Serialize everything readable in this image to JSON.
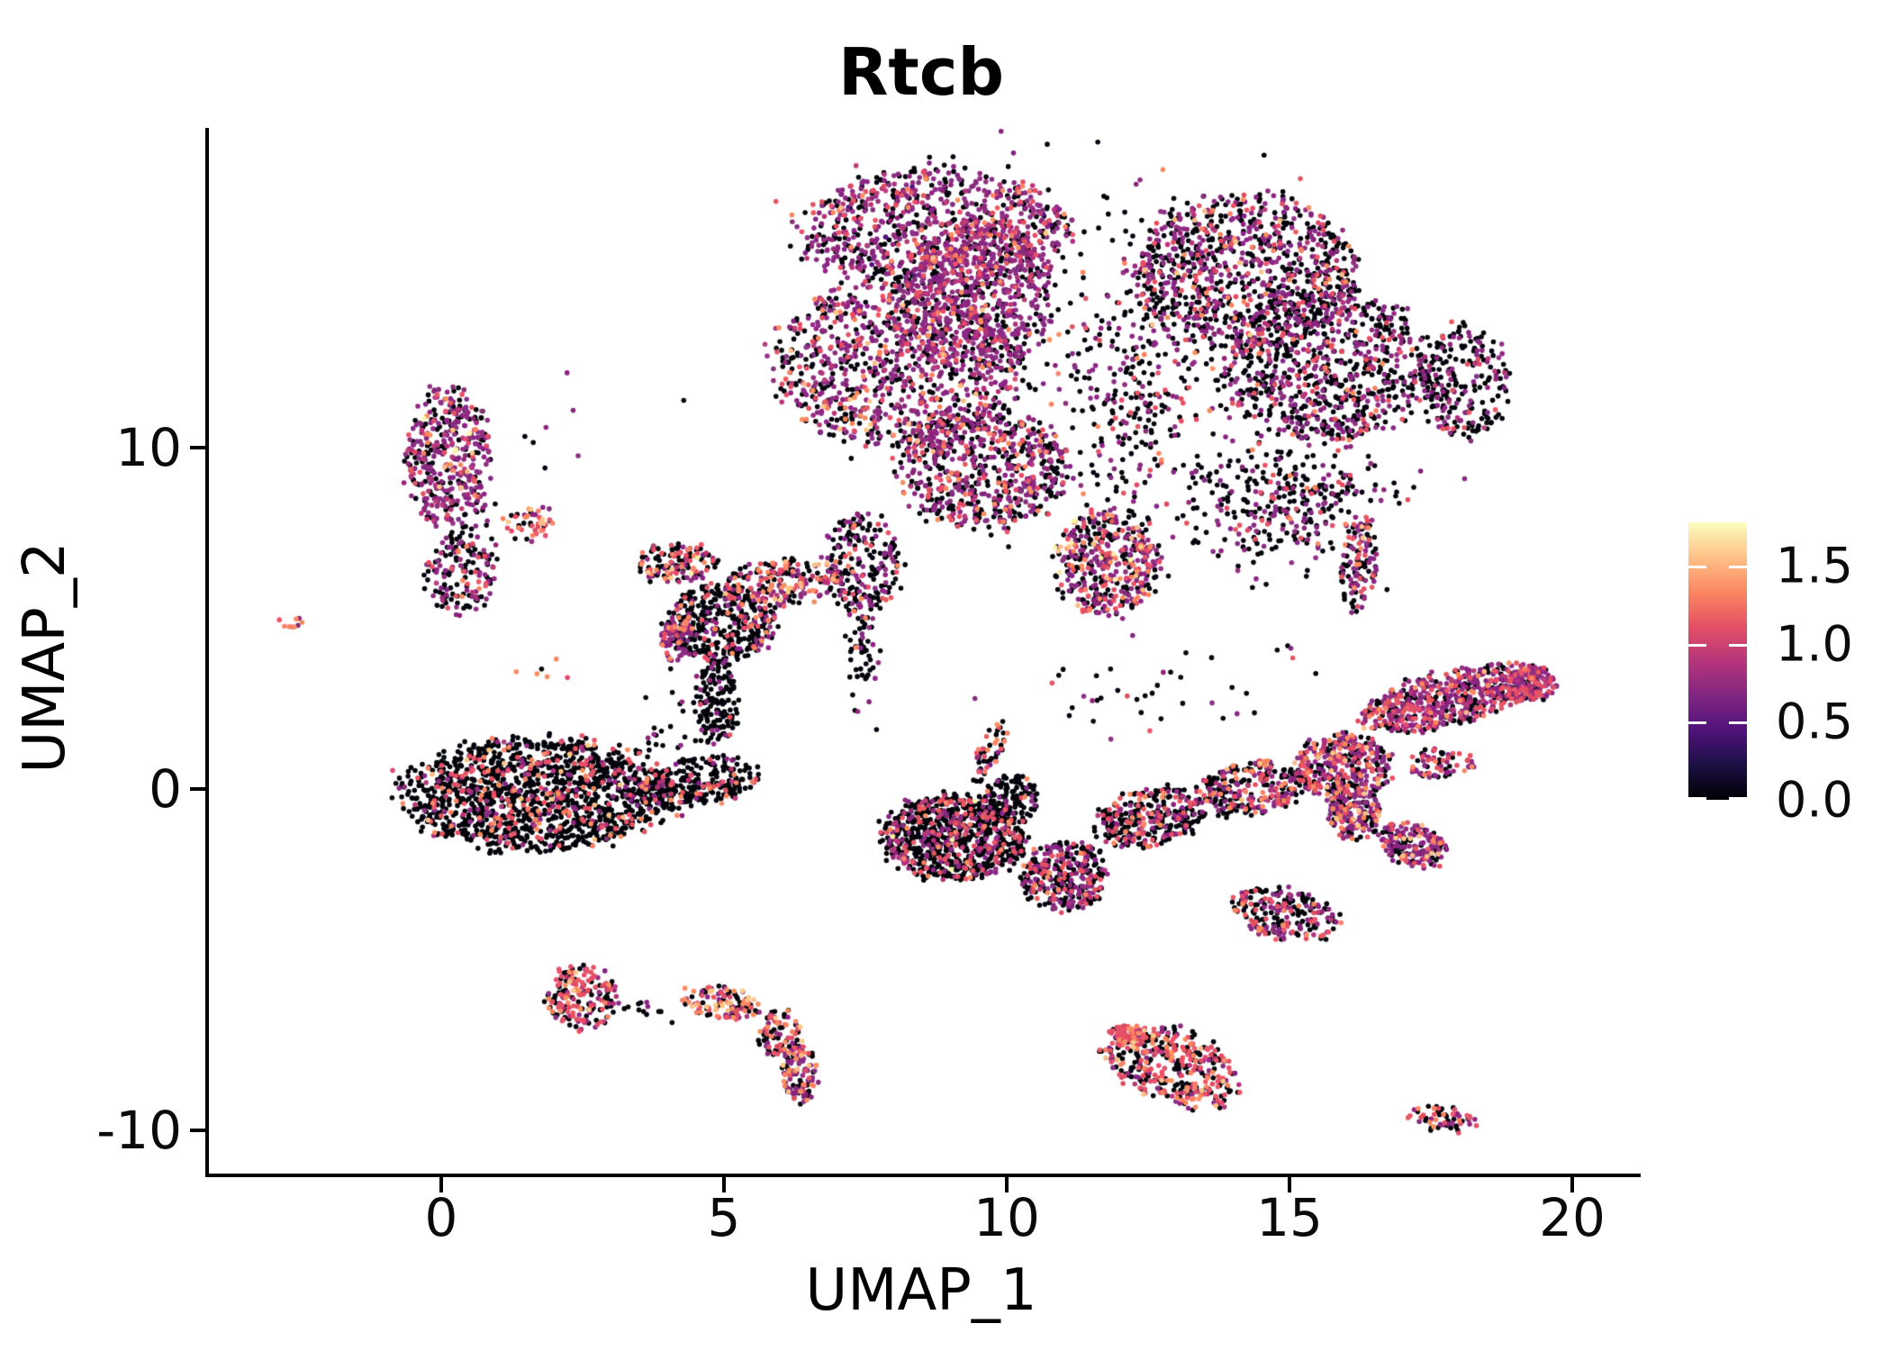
{
  "title": "Rtcb",
  "axes": {
    "x_label": "UMAP_1",
    "y_label": "UMAP_2",
    "x_ticks": [
      0,
      5,
      10,
      15,
      20
    ],
    "y_ticks": [
      10,
      0,
      -10
    ],
    "x_range": [
      -4.1,
      21.2
    ],
    "y_range": [
      -11.3,
      19.4
    ]
  },
  "colorbar": {
    "tick_labels": [
      "1.5",
      "1.0",
      "0.5",
      "0.0"
    ],
    "tick_values": [
      1.5,
      1.0,
      0.5,
      0.0
    ],
    "range": [
      0,
      1.777
    ],
    "position": "right",
    "magma_stops": [
      "#000004",
      "#1c1044",
      "#4f127b",
      "#812581",
      "#b5367a",
      "#e55064",
      "#fb8761",
      "#fec287",
      "#fcfdbf"
    ]
  },
  "point_colors": {
    "black": "#03030a",
    "dpurple": "#51127c",
    "purple": "#8c2981",
    "magenta": "#b63679",
    "pink": "#e65164",
    "orange": "#fb8861",
    "peach": "#fec287",
    "yellow": "#fcf1a9"
  },
  "chart_data": {
    "type": "scatter",
    "title": "Rtcb",
    "xlabel": "UMAP_1",
    "ylabel": "UMAP_2",
    "xlim": [
      -4.1,
      21.2
    ],
    "ylim": [
      -11.3,
      19.4
    ],
    "grid": false,
    "legend": "colorbar right, expression 0.0 to ~1.78, magma colormap",
    "point_radius_px": 2.8,
    "clusters": [
      {
        "name": "top-left-band",
        "cx": 8.76,
        "cy": 16.4,
        "rx": 2.39,
        "ry": 1.72,
        "rot": 0,
        "n": 850,
        "palette": {
          "purple": 0.46,
          "black": 0.3,
          "magenta": 0.09,
          "pink": 0.08,
          "orange": 0.04,
          "dpurple": 0.02,
          "peach": 0.01
        }
      },
      {
        "name": "top-left-mass",
        "cx": 8.04,
        "cy": 12.43,
        "rx": 2.15,
        "ry": 2.51,
        "rot": 0,
        "n": 1000,
        "palette": {
          "purple": 0.42,
          "black": 0.36,
          "magenta": 0.08,
          "pink": 0.08,
          "orange": 0.04,
          "peach": 0.02
        }
      },
      {
        "name": "top-left-core",
        "cx": 9.47,
        "cy": 14.4,
        "rx": 1.35,
        "ry": 2.24,
        "rot": 0,
        "n": 620,
        "palette": {
          "purple": 0.55,
          "black": 0.25,
          "magenta": 0.1,
          "pink": 0.07,
          "orange": 0.03
        }
      },
      {
        "name": "top-lower-ext",
        "cx": 9.55,
        "cy": 9.39,
        "rx": 1.51,
        "ry": 1.72,
        "rot": 0,
        "n": 640,
        "palette": {
          "purple": 0.4,
          "black": 0.42,
          "pink": 0.09,
          "magenta": 0.05,
          "orange": 0.04
        }
      },
      {
        "name": "top-left-tail",
        "cx": 7.45,
        "cy": 6.62,
        "rx": 0.72,
        "ry": 1.45,
        "rot": 0,
        "n": 220,
        "palette": {
          "black": 0.6,
          "purple": 0.3,
          "pink": 0.06,
          "orange": 0.04
        }
      },
      {
        "name": "top-left-tail-thin",
        "cx": 7.45,
        "cy": 3.98,
        "rx": 0.25,
        "ry": 1.45,
        "rot": 0,
        "n": 55,
        "dist": "gauss",
        "palette": {
          "black": 0.82,
          "purple": 0.12,
          "orange": 0.06
        }
      },
      {
        "name": "top-mid-tail",
        "cx": 11.75,
        "cy": 6.62,
        "rx": 0.92,
        "ry": 1.53,
        "rot": 0,
        "n": 430,
        "palette": {
          "purple": 0.38,
          "black": 0.36,
          "pink": 0.13,
          "orange": 0.08,
          "peach": 0.03,
          "yellow": 0.02
        }
      },
      {
        "name": "top-right-upper",
        "cx": 14.17,
        "cy": 15.2,
        "rx": 1.99,
        "ry": 2.24,
        "rot": 0,
        "n": 860,
        "palette": {
          "black": 0.5,
          "purple": 0.32,
          "pink": 0.08,
          "magenta": 0.06,
          "orange": 0.03,
          "peach": 0.01
        }
      },
      {
        "name": "top-right-lower",
        "cx": 15.68,
        "cy": 12.43,
        "rx": 1.83,
        "ry": 2.24,
        "rot": 0,
        "n": 820,
        "palette": {
          "black": 0.56,
          "purple": 0.3,
          "pink": 0.08,
          "magenta": 0.04,
          "orange": 0.02
        }
      },
      {
        "name": "top-right-hook",
        "cx": 18.07,
        "cy": 11.9,
        "rx": 0.76,
        "ry": 1.72,
        "rot": 0,
        "n": 230,
        "palette": {
          "black": 0.6,
          "purple": 0.27,
          "pink": 0.08,
          "magenta": 0.05
        }
      },
      {
        "name": "top-gap-sparse",
        "cx": 12.42,
        "cy": 11.9,
        "rx": 1.19,
        "ry": 3.43,
        "rot": 0,
        "n": 300,
        "dist": "gauss",
        "palette": {
          "black": 0.58,
          "purple": 0.3,
          "pink": 0.08,
          "orange": 0.04
        }
      },
      {
        "name": "top-lowerright-sparse",
        "cx": 14.97,
        "cy": 8.47,
        "rx": 1.51,
        "ry": 1.45,
        "rot": 0,
        "n": 330,
        "dist": "gauss",
        "palette": {
          "black": 0.6,
          "purple": 0.3,
          "pink": 0.07,
          "orange": 0.03
        }
      },
      {
        "name": "top-halo",
        "cx": 11.94,
        "cy": 13.1,
        "rx": 4.14,
        "ry": 4.75,
        "rot": 0,
        "n": 230,
        "dist": "gauss",
        "palette": {
          "black": 0.66,
          "purple": 0.27,
          "pink": 0.05,
          "orange": 0.02
        }
      },
      {
        "name": "left-purple-main",
        "cx": 0.11,
        "cy": 9.79,
        "rx": 0.76,
        "ry": 1.98,
        "rot": 0,
        "n": 400,
        "palette": {
          "purple": 0.5,
          "black": 0.3,
          "magenta": 0.09,
          "pink": 0.06,
          "orange": 0.03,
          "peach": 0.01,
          "yellow": 0.01
        }
      },
      {
        "name": "left-purple-sub",
        "cx": 0.32,
        "cy": 6.23,
        "rx": 0.64,
        "ry": 1.11,
        "rot": 0,
        "n": 150,
        "palette": {
          "black": 0.54,
          "purple": 0.34,
          "pink": 0.06,
          "orange": 0.03,
          "magenta": 0.03
        }
      },
      {
        "name": "left-purple-trail",
        "cx": 0.48,
        "cy": 7.81,
        "rx": 0.48,
        "ry": 1.06,
        "rot": 0,
        "n": 40,
        "dist": "gauss",
        "palette": {
          "black": 0.6,
          "purple": 0.4
        }
      },
      {
        "name": "far-left-dot",
        "cx": -2.67,
        "cy": 4.91,
        "rx": 0.21,
        "ry": 0.26,
        "rot": 0,
        "n": 9,
        "palette": {
          "pink": 0.4,
          "orange": 0.25,
          "black": 0.25,
          "purple": 0.1
        }
      },
      {
        "name": "small-orange",
        "cx": 1.51,
        "cy": 7.68,
        "rx": 0.48,
        "ry": 0.55,
        "rot": 0,
        "n": 44,
        "palette": {
          "pink": 0.34,
          "orange": 0.24,
          "black": 0.26,
          "purple": 0.1,
          "peach": 0.06
        }
      },
      {
        "name": "tiny-trio",
        "cx": 1.83,
        "cy": 3.67,
        "rx": 0.35,
        "ry": 0.42,
        "rot": 0,
        "n": 6,
        "dist": "gauss",
        "palette": {
          "orange": 0.5,
          "pink": 0.2,
          "black": 0.2,
          "purple": 0.1
        }
      },
      {
        "name": "midleft-arc-left",
        "cx": 4.17,
        "cy": 6.62,
        "rx": 0.72,
        "ry": 0.58,
        "rot": 0,
        "n": 130,
        "palette": {
          "black": 0.38,
          "pink": 0.18,
          "purple": 0.16,
          "magenta": 0.1,
          "orange": 0.12,
          "peach": 0.04,
          "yellow": 0.02
        }
      },
      {
        "name": "midleft-arc-right",
        "cx": 6.02,
        "cy": 6.02,
        "rx": 1.08,
        "ry": 0.69,
        "rot": -8,
        "n": 215,
        "palette": {
          "black": 0.4,
          "purple": 0.22,
          "pink": 0.15,
          "magenta": 0.08,
          "orange": 0.11,
          "peach": 0.04
        }
      },
      {
        "name": "midleft-body",
        "cx": 4.94,
        "cy": 4.85,
        "rx": 0.99,
        "ry": 1.11,
        "rot": 0,
        "n": 390,
        "palette": {
          "black": 0.79,
          "purple": 0.1,
          "pink": 0.06,
          "orange": 0.03,
          "magenta": 0.02
        }
      },
      {
        "name": "midleft-purple-blob",
        "cx": 4.17,
        "cy": 4.38,
        "rx": 0.3,
        "ry": 0.61,
        "rot": 0,
        "n": 85,
        "palette": {
          "purple": 0.6,
          "orange": 0.12,
          "black": 0.2,
          "pink": 0.08
        }
      },
      {
        "name": "midleft-tail",
        "cx": 4.87,
        "cy": 2.59,
        "rx": 0.41,
        "ry": 1.21,
        "rot": 0,
        "n": 150,
        "palette": {
          "black": 0.87,
          "purple": 0.1,
          "pink": 0.03
        }
      },
      {
        "name": "midleft-strays",
        "cx": 4.3,
        "cy": 2.0,
        "rx": 0.96,
        "ry": 1.06,
        "rot": 0,
        "n": 18,
        "dist": "gauss",
        "palette": {
          "black": 0.85,
          "purple": 0.15
        }
      },
      {
        "name": "bottomleft-main",
        "cx": 1.72,
        "cy": -0.16,
        "rx": 2.42,
        "ry": 1.64,
        "rot": 0,
        "n": 1450,
        "palette": {
          "black": 0.78,
          "pink": 0.08,
          "purple": 0.06,
          "magenta": 0.03,
          "orange": 0.04,
          "peach": 0.01
        }
      },
      {
        "name": "bottomleft-tail",
        "cx": 4.54,
        "cy": 0.21,
        "rx": 1.15,
        "ry": 0.69,
        "rot": -7,
        "n": 260,
        "palette": {
          "black": 0.8,
          "pink": 0.09,
          "purple": 0.05,
          "orange": 0.04,
          "magenta": 0.02
        }
      },
      {
        "name": "bottomleft-strays",
        "cx": 4.3,
        "cy": 1.61,
        "rx": 0.64,
        "ry": 0.53,
        "rot": 0,
        "n": 14,
        "dist": "gauss",
        "palette": {
          "black": 1.0
        }
      },
      {
        "name": "central-horn",
        "cx": 9.71,
        "cy": 1.08,
        "rx": 0.22,
        "ry": 0.95,
        "rot": 25,
        "n": 55,
        "palette": {
          "black": 0.55,
          "orange": 0.18,
          "pink": 0.12,
          "purple": 0.15
        }
      },
      {
        "name": "central-neck",
        "cx": 10.06,
        "cy": -0.32,
        "rx": 0.51,
        "ry": 0.79,
        "rot": 0,
        "n": 120,
        "palette": {
          "black": 0.84,
          "purple": 0.08,
          "pink": 0.04,
          "orange": 0.04
        }
      },
      {
        "name": "central-main",
        "cx": 9.08,
        "cy": -1.42,
        "rx": 1.27,
        "ry": 1.24,
        "rot": 0,
        "n": 830,
        "palette": {
          "black": 0.7,
          "purple": 0.12,
          "pink": 0.09,
          "magenta": 0.06,
          "orange": 0.02,
          "yellow": 0.01
        }
      },
      {
        "name": "central-v",
        "cx": 11.02,
        "cy": -2.53,
        "rx": 0.76,
        "ry": 1.0,
        "rot": 0,
        "n": 330,
        "palette": {
          "black": 0.57,
          "purple": 0.26,
          "pink": 0.1,
          "magenta": 0.04,
          "orange": 0.03
        }
      },
      {
        "name": "central-wing1",
        "cx": 12.55,
        "cy": -0.84,
        "rx": 0.99,
        "ry": 0.84,
        "rot": -12,
        "n": 300,
        "palette": {
          "black": 0.57,
          "purple": 0.18,
          "pink": 0.13,
          "magenta": 0.06,
          "orange": 0.06
        }
      },
      {
        "name": "central-wing2",
        "cx": 14.3,
        "cy": 0.0,
        "rx": 0.99,
        "ry": 0.79,
        "rot": -10,
        "n": 280,
        "palette": {
          "black": 0.5,
          "purple": 0.2,
          "pink": 0.15,
          "magenta": 0.06,
          "orange": 0.07,
          "peach": 0.02
        }
      },
      {
        "name": "right-body",
        "cx": 15.96,
        "cy": 0.63,
        "rx": 0.83,
        "ry": 0.98,
        "rot": 0,
        "n": 380,
        "palette": {
          "black": 0.37,
          "purple": 0.28,
          "pink": 0.18,
          "magenta": 0.08,
          "orange": 0.07,
          "peach": 0.02
        }
      },
      {
        "name": "right-diag-arm",
        "cx": 17.87,
        "cy": 2.67,
        "rx": 1.67,
        "ry": 0.79,
        "rot": -14,
        "n": 580,
        "palette": {
          "purple": 0.4,
          "black": 0.28,
          "pink": 0.17,
          "magenta": 0.1,
          "orange": 0.04,
          "peach": 0.01
        }
      },
      {
        "name": "right-tip",
        "cx": 19.27,
        "cy": 3.06,
        "rx": 0.45,
        "ry": 0.53,
        "rot": 0,
        "n": 120,
        "palette": {
          "purple": 0.52,
          "pink": 0.2,
          "black": 0.18,
          "magenta": 0.1
        }
      },
      {
        "name": "right-small-arm",
        "cx": 17.68,
        "cy": 0.74,
        "rx": 0.61,
        "ry": 0.42,
        "rot": 0,
        "n": 70,
        "palette": {
          "purple": 0.38,
          "pink": 0.26,
          "black": 0.3,
          "orange": 0.06
        }
      },
      {
        "name": "right-hook-a",
        "cx": 16.16,
        "cy": -0.77,
        "rx": 0.48,
        "ry": 0.74,
        "rot": 0,
        "n": 160,
        "palette": {
          "purple": 0.45,
          "black": 0.3,
          "pink": 0.12,
          "orange": 0.09,
          "peach": 0.04
        }
      },
      {
        "name": "right-hook-b",
        "cx": 17.17,
        "cy": -1.64,
        "rx": 0.64,
        "ry": 0.63,
        "rot": 18,
        "n": 180,
        "palette": {
          "purple": 0.48,
          "black": 0.28,
          "pink": 0.12,
          "orange": 0.08,
          "peach": 0.04
        }
      },
      {
        "name": "vertical-strip",
        "cx": 16.24,
        "cy": 6.62,
        "rx": 0.32,
        "ry": 1.37,
        "rot": 8,
        "n": 120,
        "palette": {
          "black": 0.37,
          "purple": 0.25,
          "pink": 0.22,
          "orange": 0.1,
          "peach": 0.04,
          "magenta": 0.02
        }
      },
      {
        "name": "small-blob-right",
        "cx": 14.94,
        "cy": -3.67,
        "rx": 0.99,
        "ry": 0.74,
        "rot": 12,
        "n": 220,
        "palette": {
          "black": 0.5,
          "purple": 0.22,
          "pink": 0.17,
          "orange": 0.07,
          "magenta": 0.04
        }
      },
      {
        "name": "bottom-pink",
        "cx": 2.47,
        "cy": -6.12,
        "rx": 0.64,
        "ry": 0.95,
        "rot": 0,
        "n": 190,
        "palette": {
          "pink": 0.37,
          "black": 0.38,
          "purple": 0.09,
          "orange": 0.08,
          "magenta": 0.06,
          "peach": 0.02
        }
      },
      {
        "name": "bottom-arc-trail",
        "cx": 3.74,
        "cy": -6.49,
        "rx": 0.72,
        "ry": 0.32,
        "rot": 0,
        "n": 14,
        "dist": "gauss",
        "palette": {
          "black": 0.55,
          "purple": 0.45
        }
      },
      {
        "name": "bottom-arc-1",
        "cx": 4.94,
        "cy": -6.25,
        "rx": 0.67,
        "ry": 0.47,
        "rot": 8,
        "n": 112,
        "palette": {
          "black": 0.32,
          "orange": 0.18,
          "pink": 0.16,
          "peach": 0.11,
          "purple": 0.18,
          "magenta": 0.05
        }
      },
      {
        "name": "bottom-arc-2",
        "cx": 5.99,
        "cy": -7.15,
        "rx": 0.41,
        "ry": 0.69,
        "rot": 0,
        "n": 80,
        "palette": {
          "black": 0.4,
          "purple": 0.26,
          "pink": 0.2,
          "orange": 0.1,
          "peach": 0.04
        }
      },
      {
        "name": "bottom-arc-3",
        "cx": 6.34,
        "cy": -8.34,
        "rx": 0.32,
        "ry": 0.84,
        "rot": -10,
        "n": 112,
        "palette": {
          "purple": 0.4,
          "orange": 0.17,
          "black": 0.3,
          "pink": 0.09,
          "peach": 0.04
        }
      },
      {
        "name": "bottomright-main",
        "cx": 12.9,
        "cy": -8.07,
        "rx": 1.24,
        "ry": 1.11,
        "rot": 22,
        "n": 400,
        "palette": {
          "black": 0.43,
          "pink": 0.27,
          "orange": 0.1,
          "purple": 0.11,
          "peach": 0.05,
          "magenta": 0.04
        }
      },
      {
        "name": "bottomright-pink",
        "cx": 12.13,
        "cy": -7.23,
        "rx": 0.32,
        "ry": 0.37,
        "rot": 0,
        "n": 45,
        "palette": {
          "pink": 0.72,
          "magenta": 0.12,
          "orange": 0.12,
          "black": 0.04
        }
      },
      {
        "name": "far-right-small",
        "cx": 17.68,
        "cy": -9.66,
        "rx": 0.64,
        "ry": 0.4,
        "rot": 12,
        "n": 60,
        "palette": {
          "black": 0.46,
          "pink": 0.25,
          "purple": 0.21,
          "orange": 0.08
        }
      },
      {
        "name": "scatter-mid-sparse",
        "cx": 12.9,
        "cy": 3.06,
        "rx": 2.39,
        "ry": 1.32,
        "rot": 0,
        "n": 42,
        "dist": "gauss",
        "palette": {
          "black": 0.62,
          "purple": 0.28,
          "pink": 0.1
        }
      },
      {
        "name": "stray-under-leftpurple",
        "cx": 1.91,
        "cy": 9.39,
        "rx": 0.48,
        "ry": 1.58,
        "rot": 0,
        "n": 8,
        "dist": "gauss",
        "palette": {
          "black": 0.8,
          "purple": 0.2
        }
      }
    ]
  }
}
